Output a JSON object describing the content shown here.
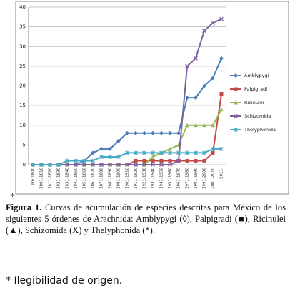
{
  "chart_data": {
    "type": "line",
    "categories": [
      "pre 1800",
      "1801-1810",
      "1811-1820",
      "1821-1830",
      "1831-1840",
      "1841-1850",
      "1851-1860",
      "1861-1870",
      "1871-1880",
      "1881-1890",
      "1891-1900",
      "1901-1910",
      "1911-1920",
      "1921-1930",
      "1931-1940",
      "1941-1950",
      "1951-1960",
      "1961-1970",
      "1971-1980",
      "1981-1990",
      "1991-2000",
      "2001-2010",
      "2011-"
    ],
    "series": [
      {
        "name": "Amblypygi",
        "color": "#4a7ebb",
        "marker": "diamond",
        "values": [
          0,
          0,
          0,
          0,
          0,
          0,
          1,
          3,
          4,
          4,
          6,
          8,
          8,
          8,
          8,
          8,
          8,
          8,
          17,
          17,
          20,
          22,
          27
        ]
      },
      {
        "name": "Palpigradi",
        "color": "#be4b48",
        "marker": "square",
        "values": [
          0,
          0,
          0,
          0,
          0,
          0,
          0,
          0,
          0,
          0,
          0,
          0,
          1,
          1,
          1,
          1,
          1,
          1,
          1,
          1,
          1,
          3,
          18
        ]
      },
      {
        "name": "Ricinulei",
        "color": "#98b954",
        "marker": "triangle",
        "values": [
          0,
          0,
          0,
          0,
          0,
          0,
          0,
          0,
          0,
          0,
          0,
          0,
          0,
          0,
          2,
          3,
          4,
          5,
          10,
          10,
          10,
          10,
          14
        ]
      },
      {
        "name": "Schizomida",
        "color": "#7d60a0",
        "marker": "x",
        "values": [
          0,
          0,
          0,
          0,
          0,
          0,
          0,
          0,
          0,
          0,
          0,
          0,
          0,
          0,
          0,
          0,
          0,
          1,
          25,
          27,
          34,
          36,
          37
        ]
      },
      {
        "name": "Thelyphonida",
        "color": "#46aac5",
        "marker": "star",
        "values": [
          0,
          0,
          0,
          0,
          1,
          1,
          1,
          1,
          2,
          2,
          2,
          3,
          3,
          3,
          3,
          3,
          3,
          3,
          3,
          3,
          3,
          4,
          4
        ]
      }
    ],
    "ylim": [
      0,
      40
    ],
    "yticks": [
      0,
      5,
      10,
      15,
      20,
      25,
      30,
      35,
      40
    ],
    "grid": true,
    "legend": "right"
  },
  "caption": {
    "marker": "*",
    "label": "Figura 1.",
    "text": "Curvas de acumulación de especies descritas para México de los siguientes 5 órdenes de Arachnida: Amblypygi (◊), Palpigradi (■), Ricinulei (▲), Schizomida (X) y Thelyphonida (*)."
  },
  "footnote": "* Ilegibilidad de origen."
}
